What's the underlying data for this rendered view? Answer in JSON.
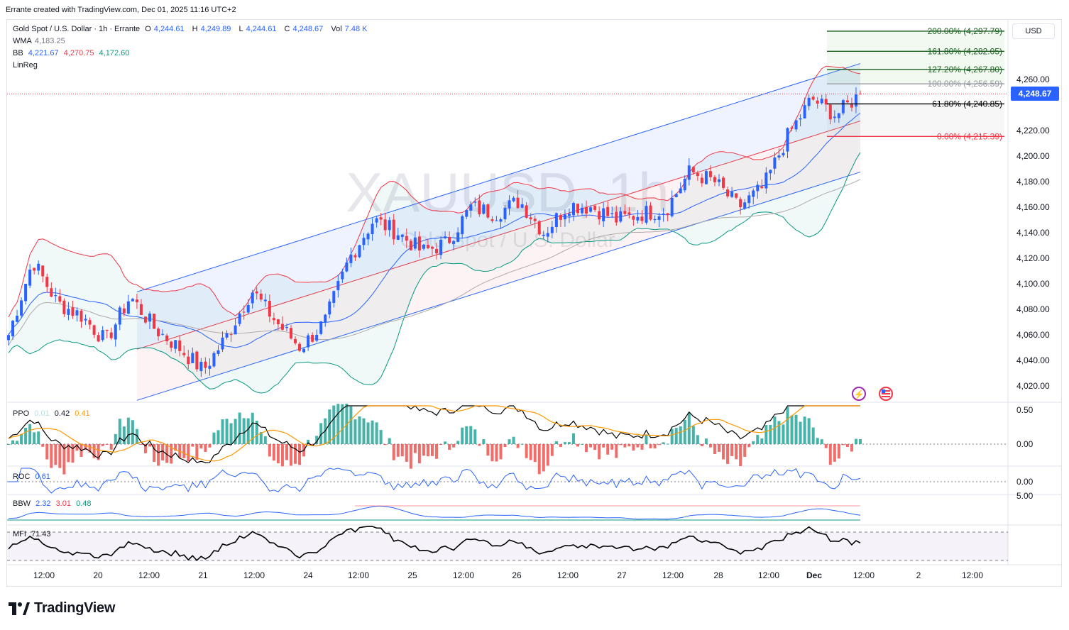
{
  "header_note": "Errante created with TradingView.com, Dec 01, 2025 11:16 UTC+2",
  "legend": {
    "symbol": "Gold Spot / U.S. Dollar · 1h · Errante",
    "o_label": "O",
    "o": "4,244.61",
    "h_label": "H",
    "h": "4,249.89",
    "l_label": "L",
    "l": "4,244.61",
    "c_label": "C",
    "c": "4,248.67",
    "vol_label": "Vol",
    "vol": "7.48 K",
    "wma_label": "WMA",
    "wma": "4,183.25",
    "bb_label": "BB",
    "bb_basis": "4,221.67",
    "bb_upper": "4,270.75",
    "bb_lower": "4,172.60",
    "linreg_label": "LinReg"
  },
  "currency": "USD",
  "last_price": "4,248.67",
  "watermark": {
    "ticker": "XAUUSD, 1h",
    "name": "Gold Spot / U.S. Dollar"
  },
  "colors": {
    "up": "#2962ff",
    "down": "#f23645",
    "wma": "#2962ff",
    "bb": "#089981",
    "bb_upper": "#f23645",
    "ppo_line": "#000000",
    "ppo_signal": "#ff9800",
    "hist_up": "#26a69a",
    "hist_down": "#ef5350",
    "roc": "#2962ff",
    "mfi": "#000000"
  },
  "panes": {
    "ppo": {
      "label": "PPO",
      "v1": "0.01",
      "v2": "0.42",
      "v3": "0.41",
      "axis": [
        "0.50",
        "0.00"
      ]
    },
    "roc": {
      "label": "ROC",
      "v1": "0.61",
      "axis": [
        "0.00"
      ]
    },
    "bbw": {
      "label": "BBW",
      "v1": "2.32",
      "v2": "3.01",
      "v3": "0.48",
      "axis": [
        "5.00"
      ]
    },
    "mfi": {
      "label": "MFI",
      "v1": "71.43"
    }
  },
  "brand": "TradingView",
  "chart_data": {
    "type": "candlestick",
    "title": "Gold Spot / U.S. Dollar · 1h · Errante",
    "y_ticks": [
      4260,
      4220,
      4200,
      4180,
      4160,
      4140,
      4120,
      4100,
      4080,
      4060,
      4040,
      4020
    ],
    "x_ticks": [
      {
        "label": "12:00"
      },
      {
        "label": "20"
      },
      {
        "label": "12:00"
      },
      {
        "label": "21"
      },
      {
        "label": "12:00"
      },
      {
        "label": "24"
      },
      {
        "label": "12:00"
      },
      {
        "label": "25"
      },
      {
        "label": "12:00"
      },
      {
        "label": "26"
      },
      {
        "label": "12:00"
      },
      {
        "label": "27"
      },
      {
        "label": "12:00"
      },
      {
        "label": "28"
      },
      {
        "label": "12:00"
      },
      {
        "label": "Dec"
      },
      {
        "label": "12:00"
      },
      {
        "label": "2"
      },
      {
        "label": "12:00"
      }
    ],
    "ylim": [
      4005,
      4305
    ],
    "close_key_points": [
      4060,
      4118,
      4085,
      4075,
      4055,
      4090,
      4065,
      4050,
      4032,
      4060,
      4095,
      4070,
      4050,
      4070,
      4120,
      4150,
      4140,
      4125,
      4132,
      4160,
      4155,
      4165,
      4140,
      4162,
      4160,
      4150,
      4155,
      4158,
      4188,
      4180,
      4160,
      4175,
      4215,
      4245,
      4232,
      4248.67
    ],
    "fib_levels": [
      {
        "pct": "200.00%",
        "value": 4297.79
      },
      {
        "pct": "161.80%",
        "value": 4282.05
      },
      {
        "pct": "127.20%",
        "value": 4267.8
      },
      {
        "pct": "100.00%",
        "value": 4256.59
      },
      {
        "pct": "61.80%",
        "value": 4240.85
      },
      {
        "pct": "0.00%",
        "value": 4215.39
      }
    ],
    "last_price": 4248.67
  }
}
